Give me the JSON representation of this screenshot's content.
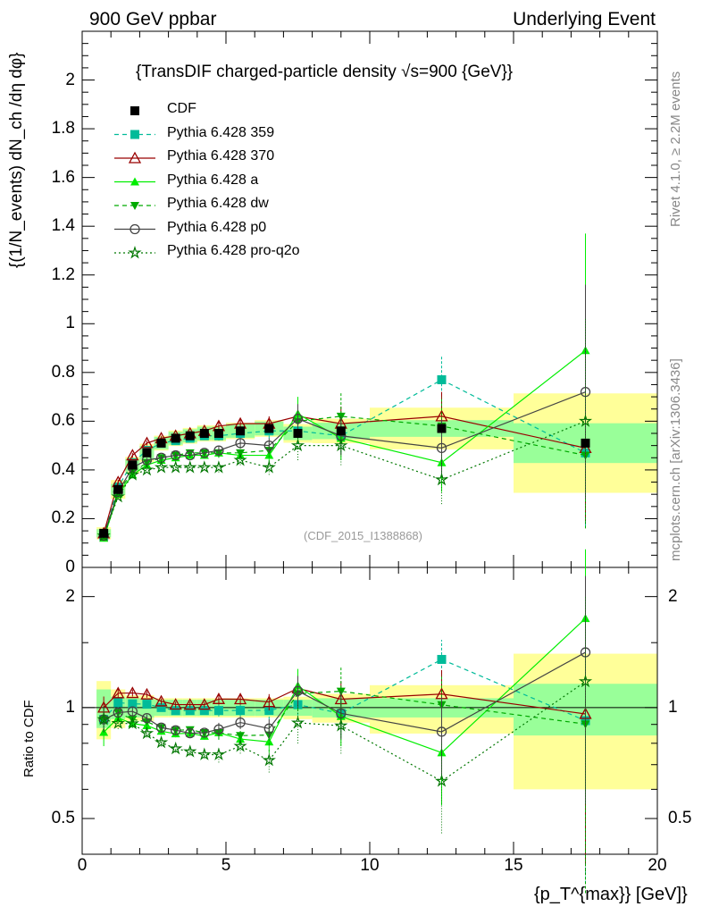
{
  "header": {
    "left": "900 GeV ppbar",
    "right": "Underlying Event"
  },
  "side_labels": {
    "rivet": "Rivet 4.1.0, ≥ 2.2M events",
    "mcplots": "mcplots.cern.ch [arXiv:1306.3436]"
  },
  "chart_data": {
    "type": "line",
    "title": "{TransDIF charged-particle density √s=900 {GeV}}",
    "analysis_tag": "(CDF_2015_I1388868)",
    "ylabel_main": "{(1/N_events) dN_ch /dη dφ}",
    "ylabel_ratio": "Ratio to CDF",
    "xlabel": "{p_T^{max}} [GeV]}",
    "xlim": [
      0,
      20
    ],
    "ylim_main": [
      0,
      2.2
    ],
    "ylim_ratio": [
      0.4,
      2.4
    ],
    "x_ticks": [
      "0",
      "5",
      "10",
      "15",
      "20"
    ],
    "y_ticks_main": [
      "0",
      "0.2",
      "0.4",
      "0.6",
      "0.8",
      "1",
      "1.2",
      "1.4",
      "1.6",
      "1.8",
      "2"
    ],
    "y_ticks_ratio": [
      "0.5",
      "1",
      "2"
    ],
    "x": [
      0.75,
      1.25,
      1.75,
      2.25,
      2.75,
      3.25,
      3.75,
      4.25,
      4.75,
      5.5,
      6.5,
      7.5,
      9.0,
      12.5,
      17.5
    ],
    "data": {
      "name": "CDF",
      "values": [
        0.14,
        0.32,
        0.42,
        0.47,
        0.51,
        0.53,
        0.54,
        0.55,
        0.55,
        0.56,
        0.57,
        0.55,
        0.56,
        0.57,
        0.51
      ],
      "band_edges": [
        0.5,
        1.0,
        1.5,
        2.0,
        2.5,
        3.0,
        3.5,
        4.0,
        4.5,
        5.0,
        6.0,
        7.0,
        8.0,
        10.0,
        15.0,
        20.0
      ],
      "band_inner": [
        0.12,
        0.07,
        0.06,
        0.06,
        0.05,
        0.05,
        0.05,
        0.05,
        0.05,
        0.05,
        0.05,
        0.05,
        0.06,
        0.06,
        0.16
      ],
      "band_outer": [
        0.18,
        0.12,
        0.08,
        0.08,
        0.06,
        0.06,
        0.06,
        0.06,
        0.06,
        0.06,
        0.06,
        0.07,
        0.09,
        0.15,
        0.4
      ]
    },
    "series": [
      {
        "name": "Pythia 6.428 359",
        "color": "#00BB99",
        "dash": "5,4",
        "marker": "square-filled",
        "values": [
          0.13,
          0.33,
          0.43,
          0.48,
          0.51,
          0.52,
          0.53,
          0.54,
          0.54,
          0.55,
          0.56,
          0.56,
          0.54,
          0.77,
          0.47
        ],
        "errors": [
          0.01,
          0.01,
          0.01,
          0.01,
          0.01,
          0.01,
          0.01,
          0.01,
          0.02,
          0.02,
          0.03,
          0.05,
          0.07,
          0.1,
          0.3
        ]
      },
      {
        "name": "Pythia 6.428 370",
        "color": "#990000",
        "dash": "",
        "marker": "triangle-open",
        "values": [
          0.14,
          0.35,
          0.46,
          0.51,
          0.53,
          0.54,
          0.55,
          0.56,
          0.58,
          0.59,
          0.59,
          0.62,
          0.59,
          0.62,
          0.49
        ],
        "errors": [
          0.01,
          0.01,
          0.01,
          0.01,
          0.01,
          0.01,
          0.01,
          0.01,
          0.02,
          0.02,
          0.03,
          0.05,
          0.07,
          0.1,
          0.3
        ]
      },
      {
        "name": "Pythia 6.428 a",
        "color": "#00EE00",
        "dash": "",
        "marker": "triangle-filled",
        "values": [
          0.12,
          0.3,
          0.38,
          0.42,
          0.44,
          0.45,
          0.46,
          0.46,
          0.47,
          0.46,
          0.46,
          0.63,
          0.53,
          0.43,
          0.89
        ],
        "errors": [
          0.01,
          0.01,
          0.01,
          0.01,
          0.01,
          0.01,
          0.01,
          0.01,
          0.02,
          0.02,
          0.03,
          0.07,
          0.09,
          0.12,
          0.48
        ]
      },
      {
        "name": "Pythia 6.428 dw",
        "color": "#00AA00",
        "dash": "5,4",
        "marker": "triangle-down-filled",
        "values": [
          0.13,
          0.31,
          0.39,
          0.43,
          0.45,
          0.46,
          0.47,
          0.47,
          0.47,
          0.47,
          0.48,
          0.6,
          0.62,
          0.58,
          0.46
        ],
        "errors": [
          0.01,
          0.01,
          0.01,
          0.01,
          0.01,
          0.01,
          0.01,
          0.01,
          0.02,
          0.02,
          0.03,
          0.06,
          0.1,
          0.12,
          0.3
        ]
      },
      {
        "name": "Pythia 6.428 p0",
        "color": "#444444",
        "dash": "",
        "marker": "circle-open",
        "values": [
          0.13,
          0.31,
          0.41,
          0.44,
          0.45,
          0.46,
          0.46,
          0.47,
          0.48,
          0.51,
          0.5,
          0.61,
          0.54,
          0.49,
          0.72
        ],
        "errors": [
          0.01,
          0.01,
          0.01,
          0.01,
          0.01,
          0.01,
          0.01,
          0.01,
          0.02,
          0.02,
          0.03,
          0.06,
          0.08,
          0.12,
          0.44
        ]
      },
      {
        "name": "Pythia 6.428 pro-q2o",
        "color": "#007700",
        "dash": "2,3",
        "marker": "star-open",
        "values": [
          0.13,
          0.29,
          0.38,
          0.4,
          0.41,
          0.41,
          0.41,
          0.41,
          0.41,
          0.44,
          0.41,
          0.5,
          0.5,
          0.36,
          0.6
        ],
        "errors": [
          0.01,
          0.01,
          0.01,
          0.01,
          0.01,
          0.01,
          0.01,
          0.01,
          0.02,
          0.02,
          0.03,
          0.06,
          0.08,
          0.1,
          0.42
        ]
      }
    ]
  }
}
